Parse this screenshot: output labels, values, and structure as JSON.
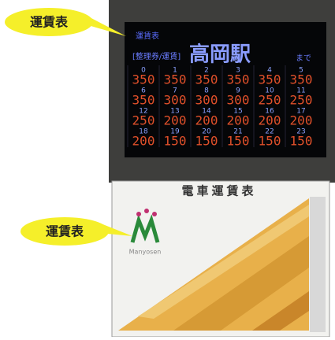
{
  "callouts": [
    "運賃表",
    "運賃表"
  ],
  "screen": {
    "caption": "運賃表",
    "label": "[整理券/運賃]",
    "station": "高岡駅",
    "suffix": "まで",
    "cells": [
      {
        "no": 0,
        "fare": 350
      },
      {
        "no": 1,
        "fare": 350
      },
      {
        "no": 2,
        "fare": 350
      },
      {
        "no": 3,
        "fare": 350
      },
      {
        "no": 4,
        "fare": 350
      },
      {
        "no": 5,
        "fare": 350
      },
      {
        "no": 6,
        "fare": 350
      },
      {
        "no": 7,
        "fare": 300
      },
      {
        "no": 8,
        "fare": 300
      },
      {
        "no": 9,
        "fare": 300
      },
      {
        "no": 10,
        "fare": 250
      },
      {
        "no": 11,
        "fare": 250
      },
      {
        "no": 12,
        "fare": 250
      },
      {
        "no": 13,
        "fare": 200
      },
      {
        "no": 14,
        "fare": 200
      },
      {
        "no": 15,
        "fare": 200
      },
      {
        "no": 16,
        "fare": 200
      },
      {
        "no": 17,
        "fare": 200
      },
      {
        "no": 18,
        "fare": 200
      },
      {
        "no": 19,
        "fare": 150
      },
      {
        "no": 20,
        "fare": 150
      },
      {
        "no": 21,
        "fare": 150
      },
      {
        "no": 22,
        "fare": 150
      },
      {
        "no": 23,
        "fare": 150
      }
    ]
  },
  "board": {
    "title": "電車運賃表",
    "logo": "Manyosen"
  }
}
